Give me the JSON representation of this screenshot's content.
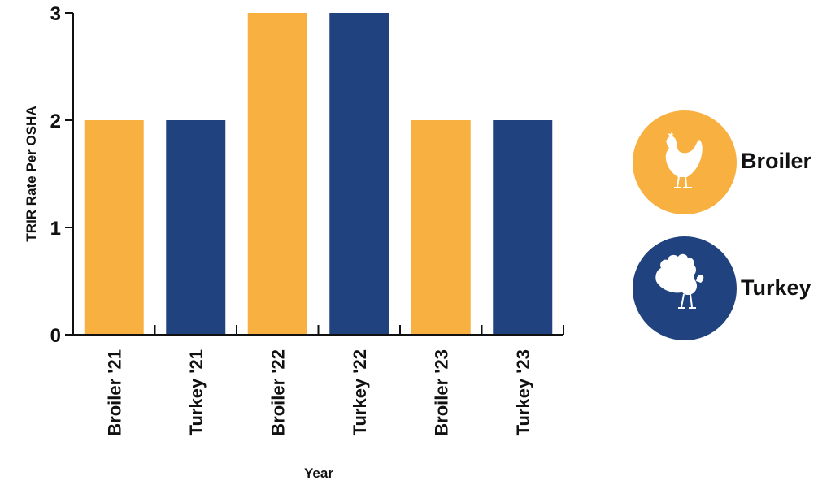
{
  "colors": {
    "broiler": "#F8B040",
    "turkey": "#20427E",
    "axis": "#111111",
    "icon": "#ffffff"
  },
  "chart_data": {
    "type": "bar",
    "categories": [
      "Broiler '21",
      "Turkey '21",
      "Broiler '22",
      "Turkey '22",
      "Broiler '23",
      "Turkey '23"
    ],
    "series_of_category": [
      "broiler",
      "turkey",
      "broiler",
      "turkey",
      "broiler",
      "turkey"
    ],
    "values": [
      2,
      2,
      3,
      3,
      2,
      2
    ],
    "xlabel": "Year",
    "ylabel": "TRIR Rate Per OSHA",
    "ylim": [
      0,
      3
    ],
    "yticks": [
      "0",
      "1",
      "2",
      "3"
    ],
    "grid": false,
    "legend": {
      "placement": "right",
      "entries": [
        {
          "key": "broiler",
          "label": "Broiler",
          "icon": "chicken-icon"
        },
        {
          "key": "turkey",
          "label": "Turkey",
          "icon": "turkey-icon"
        }
      ]
    }
  }
}
